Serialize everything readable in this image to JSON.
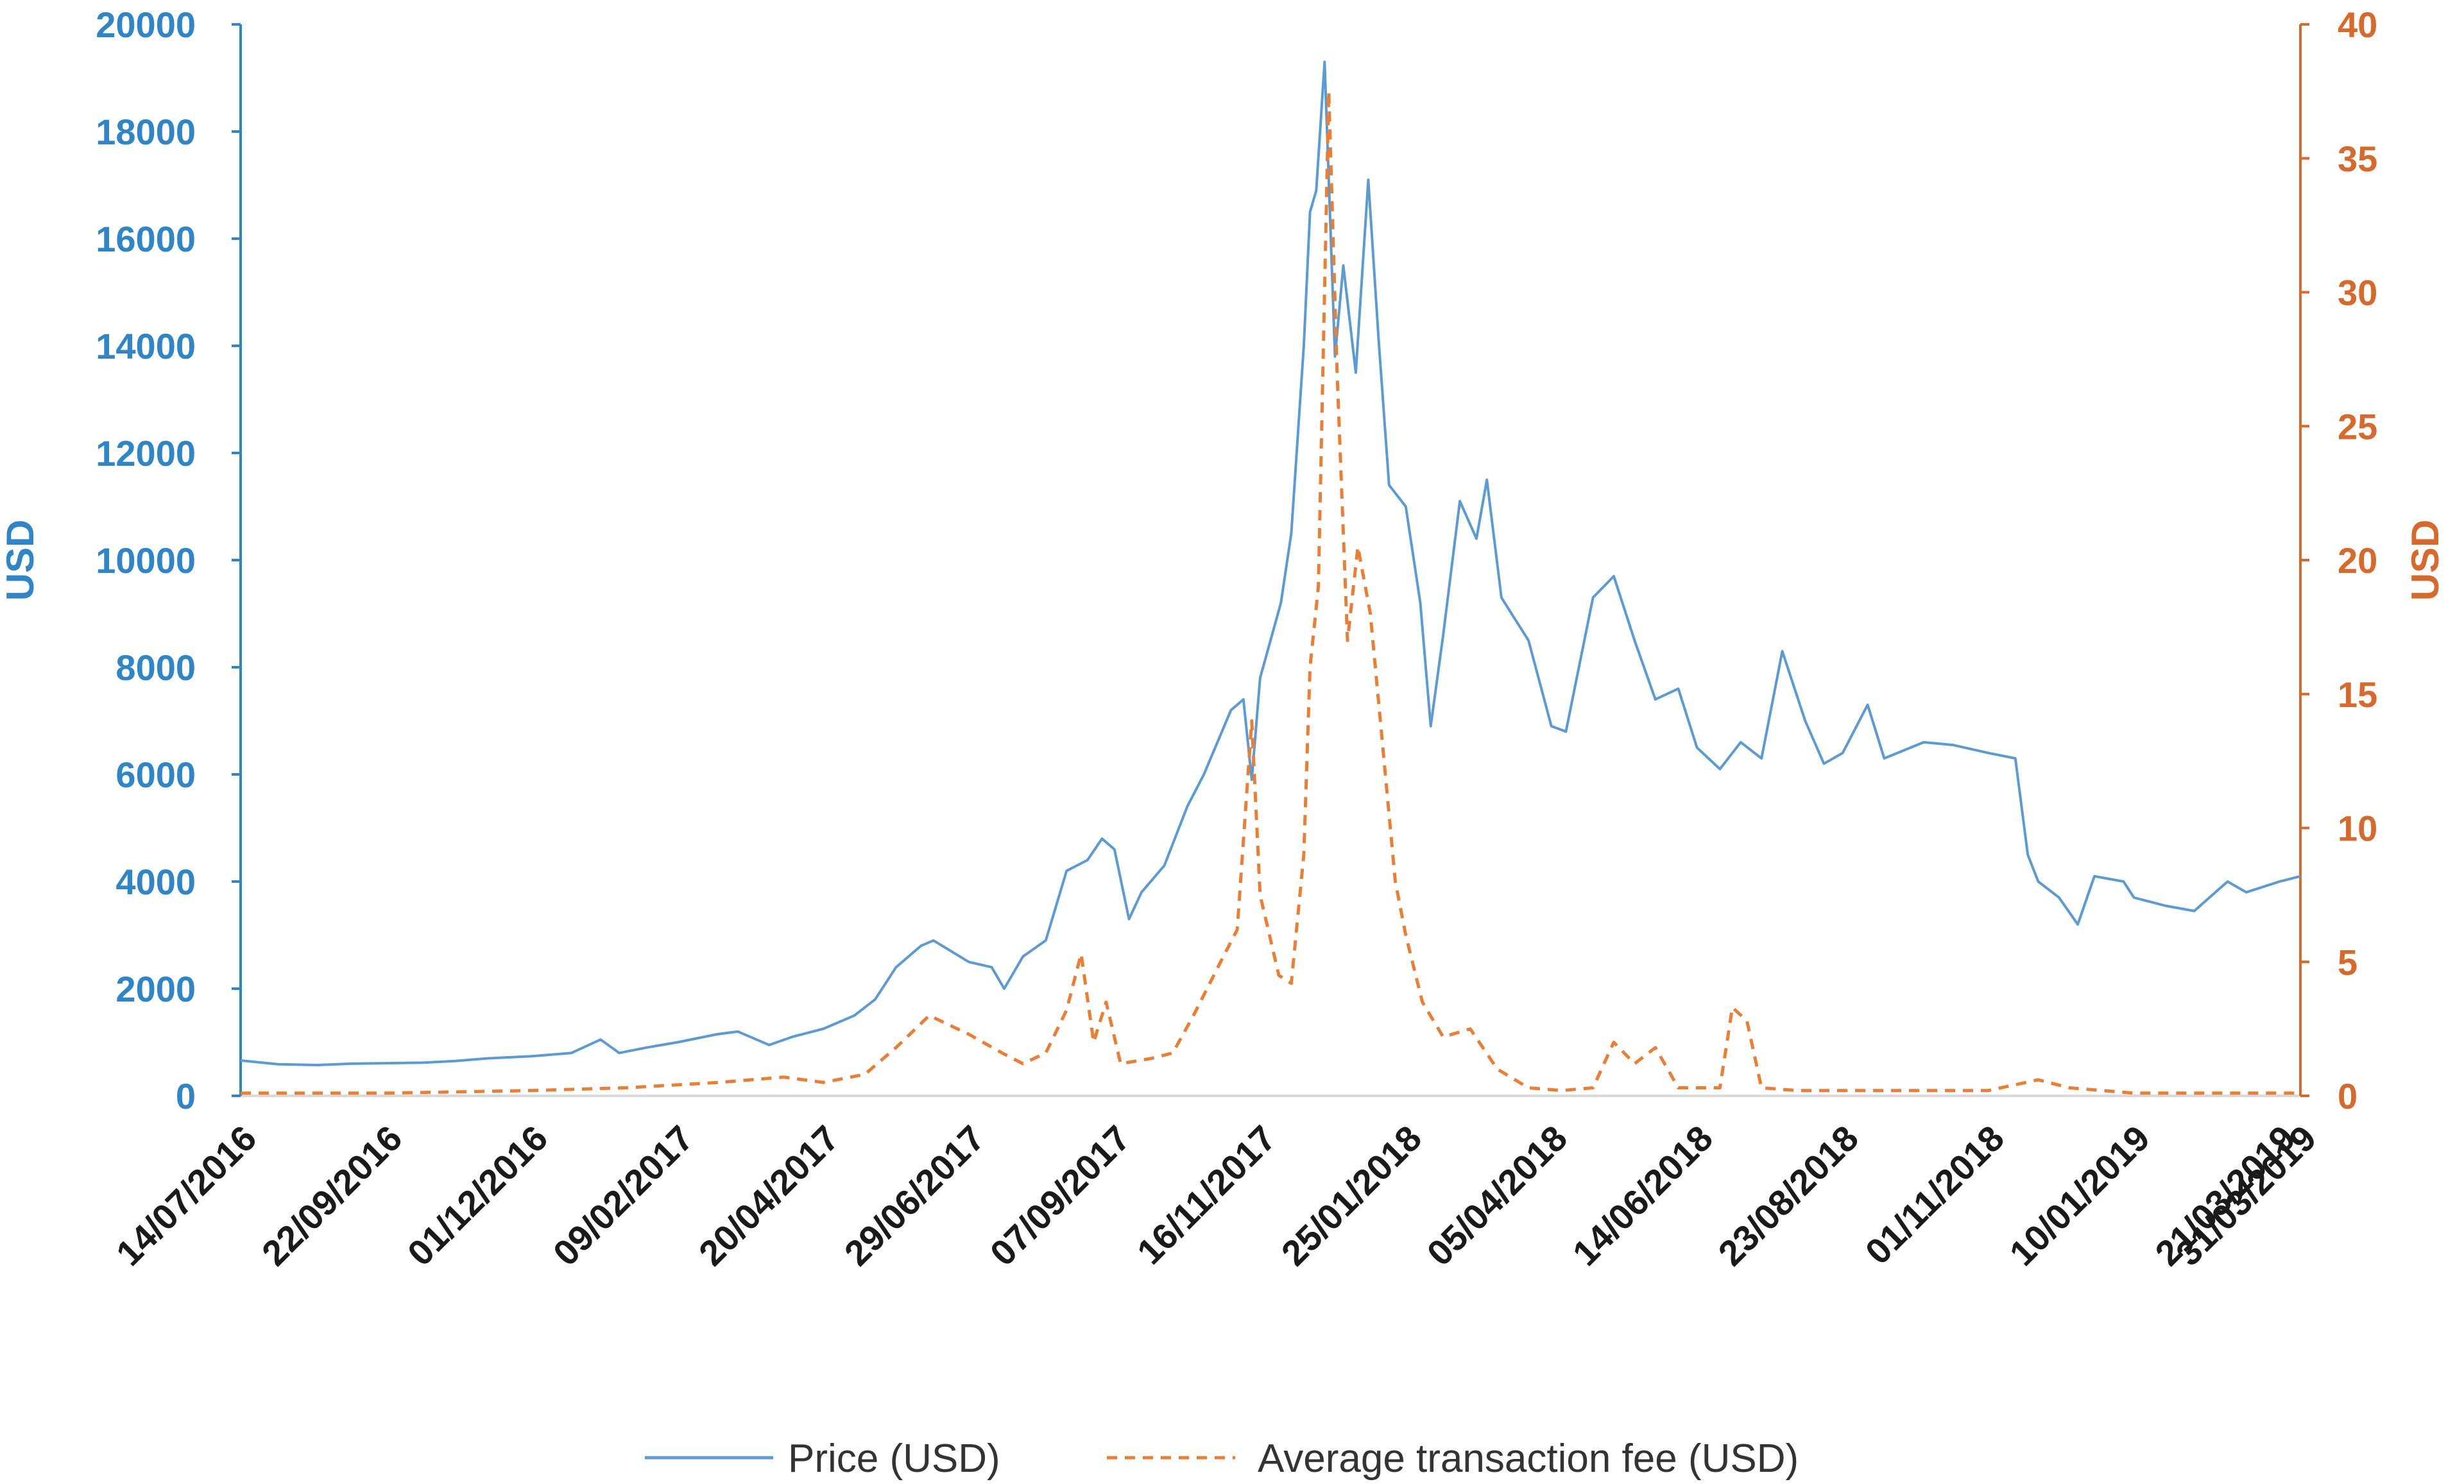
{
  "chart_data": {
    "type": "line",
    "title": "",
    "xlabel": "",
    "categories": [
      "14/07/2016",
      "22/09/2016",
      "01/12/2016",
      "09/02/2017",
      "20/04/2017",
      "29/06/2017",
      "07/09/2017",
      "16/11/2017",
      "25/01/2018",
      "05/04/2018",
      "14/06/2018",
      "23/08/2018",
      "01/11/2018",
      "10/01/2019",
      "21/03/2019",
      "31/03/2019"
    ],
    "y_left": {
      "label": "USD",
      "ylim": [
        0,
        20000
      ],
      "ticks": [
        0,
        2000,
        4000,
        6000,
        8000,
        10000,
        12000,
        14000,
        16000,
        18000,
        20000
      ],
      "color": "#2e86c8"
    },
    "y_right": {
      "label": "USD",
      "ylim": [
        0,
        40
      ],
      "ticks": [
        0,
        5,
        10,
        15,
        20,
        25,
        30,
        35,
        40
      ],
      "color": "#d8692a"
    },
    "grid": false,
    "legend_position": "bottom",
    "series": [
      {
        "name": "Price (USD)",
        "axis": "left",
        "style": "solid",
        "color": "#5b9bd5",
        "points": [
          [
            "2016-07-14",
            660
          ],
          [
            "2016-08-01",
            590
          ],
          [
            "2016-08-20",
            575
          ],
          [
            "2016-09-05",
            600
          ],
          [
            "2016-09-22",
            610
          ],
          [
            "2016-10-10",
            620
          ],
          [
            "2016-10-25",
            650
          ],
          [
            "2016-11-10",
            700
          ],
          [
            "2016-12-01",
            740
          ],
          [
            "2016-12-20",
            800
          ],
          [
            "2017-01-03",
            1050
          ],
          [
            "2017-01-12",
            800
          ],
          [
            "2017-01-25",
            900
          ],
          [
            "2017-02-09",
            1000
          ],
          [
            "2017-02-28",
            1150
          ],
          [
            "2017-03-10",
            1200
          ],
          [
            "2017-03-25",
            950
          ],
          [
            "2017-04-05",
            1100
          ],
          [
            "2017-04-20",
            1250
          ],
          [
            "2017-05-05",
            1500
          ],
          [
            "2017-05-15",
            1800
          ],
          [
            "2017-05-25",
            2400
          ],
          [
            "2017-06-06",
            2800
          ],
          [
            "2017-06-12",
            2900
          ],
          [
            "2017-06-29",
            2500
          ],
          [
            "2017-07-10",
            2400
          ],
          [
            "2017-07-16",
            2000
          ],
          [
            "2017-07-25",
            2600
          ],
          [
            "2017-08-05",
            2900
          ],
          [
            "2017-08-15",
            4200
          ],
          [
            "2017-08-25",
            4400
          ],
          [
            "2017-09-01",
            4800
          ],
          [
            "2017-09-07",
            4600
          ],
          [
            "2017-09-14",
            3300
          ],
          [
            "2017-09-20",
            3800
          ],
          [
            "2017-10-01",
            4300
          ],
          [
            "2017-10-12",
            5400
          ],
          [
            "2017-10-20",
            6000
          ],
          [
            "2017-11-02",
            7200
          ],
          [
            "2017-11-08",
            7400
          ],
          [
            "2017-11-12",
            5900
          ],
          [
            "2017-11-16",
            7800
          ],
          [
            "2017-11-26",
            9200
          ],
          [
            "2017-12-01",
            10500
          ],
          [
            "2017-12-07",
            14000
          ],
          [
            "2017-12-10",
            16500
          ],
          [
            "2017-12-13",
            16900
          ],
          [
            "2017-12-17",
            19300
          ],
          [
            "2017-12-22",
            13800
          ],
          [
            "2017-12-26",
            15500
          ],
          [
            "2018-01-01",
            13500
          ],
          [
            "2018-01-07",
            17100
          ],
          [
            "2018-01-12",
            14100
          ],
          [
            "2018-01-17",
            11400
          ],
          [
            "2018-01-25",
            11000
          ],
          [
            "2018-02-01",
            9200
          ],
          [
            "2018-02-06",
            6900
          ],
          [
            "2018-02-12",
            8600
          ],
          [
            "2018-02-20",
            11100
          ],
          [
            "2018-02-28",
            10400
          ],
          [
            "2018-03-05",
            11500
          ],
          [
            "2018-03-12",
            9300
          ],
          [
            "2018-03-25",
            8500
          ],
          [
            "2018-04-05",
            6900
          ],
          [
            "2018-04-12",
            6800
          ],
          [
            "2018-04-25",
            9300
          ],
          [
            "2018-05-05",
            9700
          ],
          [
            "2018-05-15",
            8500
          ],
          [
            "2018-05-25",
            7400
          ],
          [
            "2018-06-05",
            7600
          ],
          [
            "2018-06-14",
            6500
          ],
          [
            "2018-06-25",
            6100
          ],
          [
            "2018-07-05",
            6600
          ],
          [
            "2018-07-15",
            6300
          ],
          [
            "2018-07-25",
            8300
          ],
          [
            "2018-08-05",
            7000
          ],
          [
            "2018-08-14",
            6200
          ],
          [
            "2018-08-23",
            6400
          ],
          [
            "2018-09-04",
            7300
          ],
          [
            "2018-09-12",
            6300
          ],
          [
            "2018-10-01",
            6600
          ],
          [
            "2018-10-15",
            6550
          ],
          [
            "2018-11-01",
            6400
          ],
          [
            "2018-11-14",
            6300
          ],
          [
            "2018-11-20",
            4500
          ],
          [
            "2018-11-25",
            4000
          ],
          [
            "2018-12-05",
            3700
          ],
          [
            "2018-12-14",
            3200
          ],
          [
            "2018-12-22",
            4100
          ],
          [
            "2019-01-05",
            4000
          ],
          [
            "2019-01-10",
            3700
          ],
          [
            "2019-01-25",
            3550
          ],
          [
            "2019-02-08",
            3450
          ],
          [
            "2019-02-24",
            4000
          ],
          [
            "2019-03-05",
            3800
          ],
          [
            "2019-03-21",
            4000
          ],
          [
            "2019-03-31",
            4100
          ]
        ]
      },
      {
        "name": "Average transaction fee (USD)",
        "axis": "right",
        "style": "dashed",
        "color": "#ed7d31",
        "points": [
          [
            "2016-07-14",
            0.1
          ],
          [
            "2016-09-22",
            0.1
          ],
          [
            "2016-12-01",
            0.2
          ],
          [
            "2017-01-15",
            0.3
          ],
          [
            "2017-03-01",
            0.5
          ],
          [
            "2017-04-01",
            0.7
          ],
          [
            "2017-04-20",
            0.5
          ],
          [
            "2017-05-10",
            0.8
          ],
          [
            "2017-05-25",
            1.8
          ],
          [
            "2017-06-10",
            3.0
          ],
          [
            "2017-06-29",
            2.3
          ],
          [
            "2017-07-15",
            1.6
          ],
          [
            "2017-07-25",
            1.2
          ],
          [
            "2017-08-05",
            1.6
          ],
          [
            "2017-08-15",
            3.2
          ],
          [
            "2017-08-22",
            5.3
          ],
          [
            "2017-08-28",
            2.0
          ],
          [
            "2017-09-03",
            3.5
          ],
          [
            "2017-09-10",
            1.2
          ],
          [
            "2017-09-25",
            1.4
          ],
          [
            "2017-10-05",
            1.6
          ],
          [
            "2017-10-15",
            3.0
          ],
          [
            "2017-10-28",
            5.0
          ],
          [
            "2017-11-05",
            6.2
          ],
          [
            "2017-11-12",
            14.0
          ],
          [
            "2017-11-16",
            7.5
          ],
          [
            "2017-11-25",
            4.5
          ],
          [
            "2017-12-01",
            4.2
          ],
          [
            "2017-12-07",
            9.0
          ],
          [
            "2017-12-10",
            16.0
          ],
          [
            "2017-12-14",
            19.0
          ],
          [
            "2017-12-19",
            37.5
          ],
          [
            "2017-12-23",
            27.0
          ],
          [
            "2017-12-28",
            17.0
          ],
          [
            "2018-01-02",
            20.5
          ],
          [
            "2018-01-08",
            18.0
          ],
          [
            "2018-01-14",
            13.0
          ],
          [
            "2018-01-20",
            8.0
          ],
          [
            "2018-01-25",
            6.0
          ],
          [
            "2018-02-02",
            3.5
          ],
          [
            "2018-02-12",
            2.2
          ],
          [
            "2018-02-25",
            2.5
          ],
          [
            "2018-03-10",
            1.0
          ],
          [
            "2018-03-25",
            0.3
          ],
          [
            "2018-04-10",
            0.2
          ],
          [
            "2018-04-25",
            0.3
          ],
          [
            "2018-05-05",
            2.0
          ],
          [
            "2018-05-15",
            1.2
          ],
          [
            "2018-05-25",
            1.8
          ],
          [
            "2018-06-05",
            0.3
          ],
          [
            "2018-06-25",
            0.3
          ],
          [
            "2018-07-01",
            3.3
          ],
          [
            "2018-07-08",
            2.8
          ],
          [
            "2018-07-15",
            0.3
          ],
          [
            "2018-08-01",
            0.2
          ],
          [
            "2018-09-01",
            0.2
          ],
          [
            "2018-10-01",
            0.2
          ],
          [
            "2018-11-01",
            0.2
          ],
          [
            "2018-11-25",
            0.6
          ],
          [
            "2018-12-10",
            0.3
          ],
          [
            "2019-01-10",
            0.1
          ],
          [
            "2019-02-10",
            0.1
          ],
          [
            "2019-03-21",
            0.1
          ],
          [
            "2019-03-31",
            0.1
          ]
        ]
      }
    ]
  },
  "legend": {
    "price_label": "Price (USD)",
    "fee_label": "Average transaction fee (USD)"
  }
}
